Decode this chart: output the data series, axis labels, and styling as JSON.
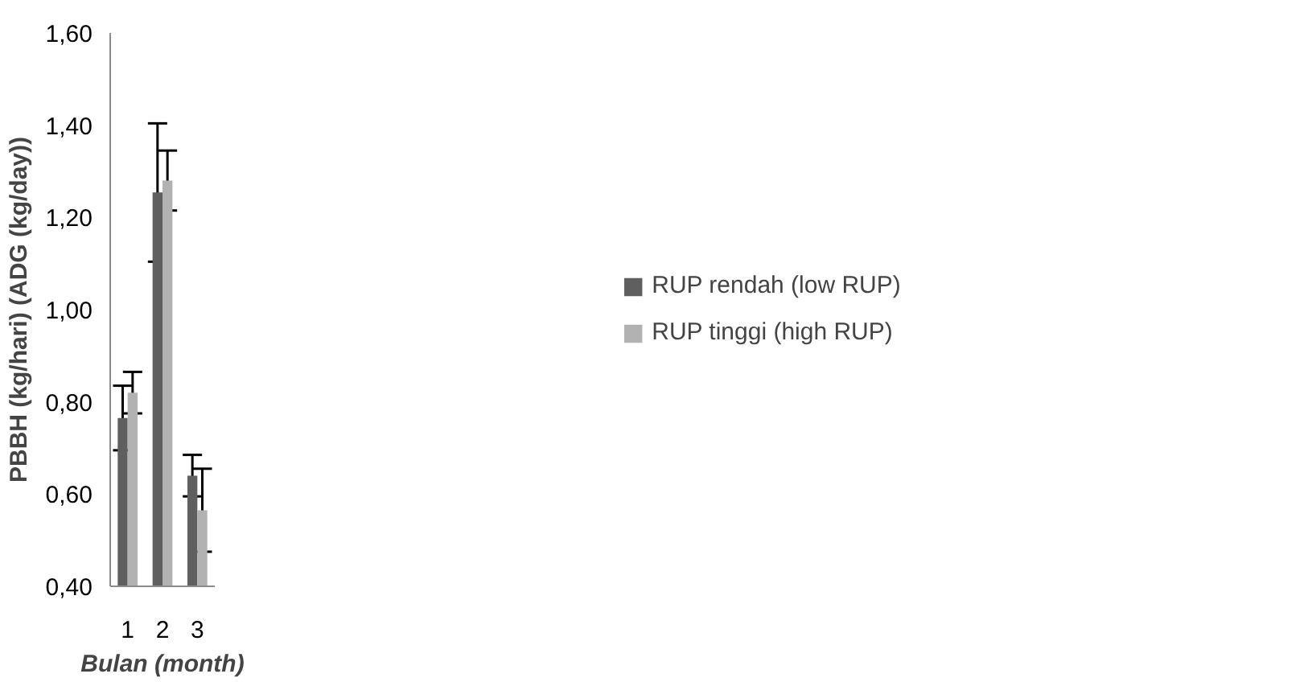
{
  "chart_data": {
    "type": "bar",
    "xlabel": "Bulan (month)",
    "ylabel": "PBBH (kg/hari) (ADG (kg/day))",
    "categories": [
      "1",
      "2",
      "3"
    ],
    "series": [
      {
        "name": "RUP rendah (low RUP)",
        "color": "#5f5f5f",
        "values": [
          0.765,
          1.254,
          0.64
        ],
        "errors": [
          0.07,
          0.15,
          0.045
        ]
      },
      {
        "name": "RUP tinggi (high RUP)",
        "color": "#b2b2b2",
        "values": [
          0.82,
          1.28,
          0.565
        ],
        "errors": [
          0.045,
          0.065,
          0.09
        ]
      }
    ],
    "ylim": [
      0.4,
      1.6
    ],
    "yticks": [
      {
        "value": 0.4,
        "label": "0,40"
      },
      {
        "value": 0.6,
        "label": "0,60"
      },
      {
        "value": 0.8,
        "label": "0,80"
      },
      {
        "value": 1.0,
        "label": "1,00"
      },
      {
        "value": 1.2,
        "label": "1,20"
      },
      {
        "value": 1.4,
        "label": "1,40"
      },
      {
        "value": 1.6,
        "label": "1,60"
      }
    ],
    "grid": false,
    "legend": "right"
  }
}
